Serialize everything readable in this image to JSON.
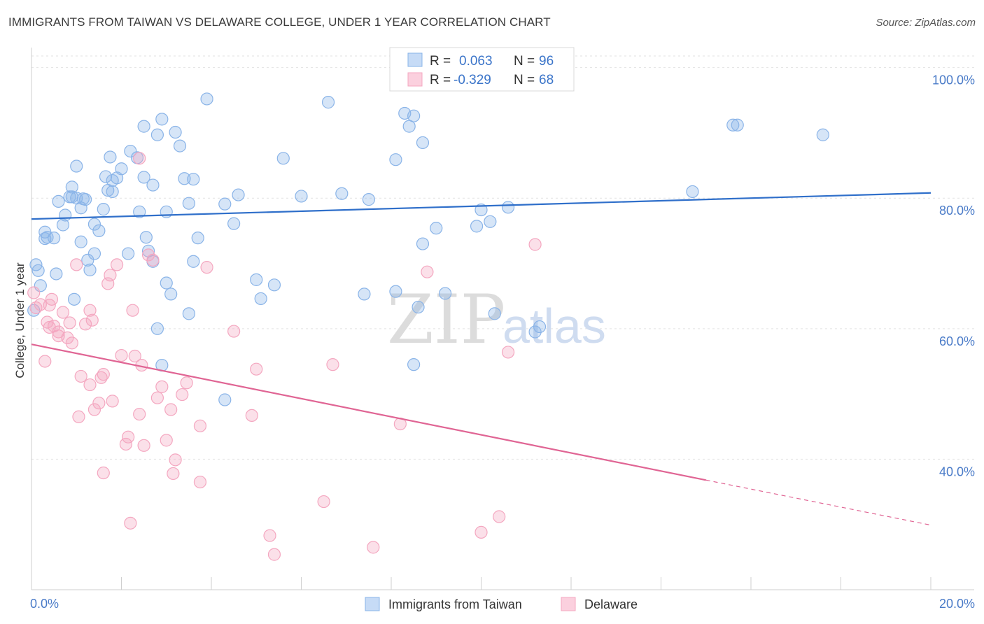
{
  "title": "IMMIGRANTS FROM TAIWAN VS DELAWARE COLLEGE, UNDER 1 YEAR CORRELATION CHART",
  "source": "Source: ZipAtlas.com",
  "watermark": {
    "zip": "ZIP",
    "atlas": "atlas"
  },
  "chart_data": {
    "type": "scatter",
    "ylabel": "College, Under 1 year",
    "xlim": [
      0,
      20
    ],
    "ylim": [
      20,
      102
    ],
    "x_ticks": [
      {
        "v": 0,
        "label": "0.0%"
      },
      {
        "v": 20,
        "label": "20.0%"
      }
    ],
    "y_ticks": [
      {
        "v": 40,
        "label": "40.0%"
      },
      {
        "v": 60,
        "label": "60.0%"
      },
      {
        "v": 80,
        "label": "80.0%"
      },
      {
        "v": 100,
        "label": "100.0%"
      }
    ],
    "legend": [
      {
        "r_label": "R =",
        "r_value": "0.063",
        "n_label": "N =",
        "n_value": "96"
      },
      {
        "r_label": "R =",
        "r_value": "-0.329",
        "n_label": "N =",
        "n_value": "68"
      }
    ],
    "series": [
      {
        "name": "Immigrants from Taiwan",
        "color": "#8ab4e8",
        "line_color": "#2f6fca",
        "trend": {
          "x": [
            0,
            20
          ],
          "y": [
            76.8,
            80.8
          ]
        },
        "points": [
          [
            0.1,
            69.8
          ],
          [
            0.15,
            68.9
          ],
          [
            0.2,
            66.6
          ],
          [
            0.05,
            62.8
          ],
          [
            0.3,
            74.8
          ],
          [
            0.35,
            74.0
          ],
          [
            0.3,
            73.8
          ],
          [
            0.5,
            73.9
          ],
          [
            0.7,
            75.9
          ],
          [
            0.75,
            77.4
          ],
          [
            0.6,
            79.5
          ],
          [
            0.85,
            80.2
          ],
          [
            0.9,
            81.7
          ],
          [
            1.0,
            80.0
          ],
          [
            1.1,
            78.5
          ],
          [
            1.2,
            79.8
          ],
          [
            1.0,
            84.9
          ],
          [
            1.1,
            73.3
          ],
          [
            1.4,
            71.5
          ],
          [
            1.5,
            75.0
          ],
          [
            1.4,
            76.0
          ],
          [
            1.6,
            78.3
          ],
          [
            1.7,
            81.2
          ],
          [
            1.8,
            81.0
          ],
          [
            1.9,
            83.1
          ],
          [
            2.0,
            84.5
          ],
          [
            1.75,
            86.3
          ],
          [
            1.8,
            82.7
          ],
          [
            1.65,
            83.3
          ],
          [
            2.2,
            87.2
          ],
          [
            2.35,
            86.2
          ],
          [
            2.4,
            77.9
          ],
          [
            2.5,
            83.2
          ],
          [
            2.7,
            82.0
          ],
          [
            2.5,
            91.0
          ],
          [
            2.8,
            89.7
          ],
          [
            2.9,
            92.1
          ],
          [
            3.2,
            90.1
          ],
          [
            3.3,
            88.0
          ],
          [
            3.4,
            83.0
          ],
          [
            3.5,
            79.2
          ],
          [
            3.6,
            82.9
          ],
          [
            3.0,
            77.9
          ],
          [
            2.55,
            74.0
          ],
          [
            2.6,
            71.9
          ],
          [
            2.7,
            70.3
          ],
          [
            3.0,
            67.0
          ],
          [
            3.1,
            65.3
          ],
          [
            3.5,
            62.3
          ],
          [
            3.6,
            70.3
          ],
          [
            3.7,
            73.9
          ],
          [
            3.9,
            95.2
          ],
          [
            4.6,
            80.5
          ],
          [
            4.3,
            79.1
          ],
          [
            4.5,
            76.1
          ],
          [
            5.0,
            67.5
          ],
          [
            5.1,
            64.6
          ],
          [
            5.4,
            66.7
          ],
          [
            5.6,
            86.1
          ],
          [
            6.0,
            80.3
          ],
          [
            6.6,
            94.7
          ],
          [
            6.9,
            80.7
          ],
          [
            7.5,
            79.8
          ],
          [
            7.4,
            65.3
          ],
          [
            8.1,
            85.9
          ],
          [
            8.1,
            65.7
          ],
          [
            8.3,
            93.0
          ],
          [
            8.5,
            92.6
          ],
          [
            8.7,
            88.5
          ],
          [
            8.4,
            91.0
          ],
          [
            8.7,
            73.0
          ],
          [
            8.6,
            63.3
          ],
          [
            8.5,
            54.5
          ],
          [
            9.0,
            75.4
          ],
          [
            9.2,
            65.4
          ],
          [
            9.9,
            75.7
          ],
          [
            10.0,
            78.2
          ],
          [
            10.2,
            76.4
          ],
          [
            10.6,
            78.6
          ],
          [
            10.3,
            62.3
          ],
          [
            11.2,
            59.5
          ],
          [
            11.3,
            60.3
          ],
          [
            14.7,
            81.0
          ],
          [
            15.6,
            91.2
          ],
          [
            15.7,
            91.2
          ],
          [
            17.6,
            89.7
          ],
          [
            4.3,
            49.1
          ],
          [
            2.9,
            54.4
          ],
          [
            2.8,
            60.0
          ],
          [
            1.15,
            79.9
          ],
          [
            0.9,
            80.2
          ],
          [
            1.25,
            70.5
          ],
          [
            1.3,
            69.0
          ],
          [
            0.55,
            68.4
          ],
          [
            0.95,
            64.5
          ],
          [
            2.15,
            71.5
          ]
        ]
      },
      {
        "name": "Delaware",
        "color": "#f4a7c0",
        "line_color": "#e06594",
        "trend": {
          "x": [
            0,
            15
          ],
          "y": [
            57.6,
            36.8
          ]
        },
        "trend_dashed": {
          "x": [
            15,
            20
          ],
          "y": [
            36.8,
            29.9
          ]
        },
        "points": [
          [
            0.05,
            65.5
          ],
          [
            0.1,
            63.2
          ],
          [
            0.3,
            55.0
          ],
          [
            0.4,
            60.2
          ],
          [
            0.5,
            60.4
          ],
          [
            0.45,
            64.5
          ],
          [
            0.6,
            58.9
          ],
          [
            0.7,
            62.5
          ],
          [
            0.8,
            58.6
          ],
          [
            0.9,
            57.8
          ],
          [
            0.85,
            60.9
          ],
          [
            1.1,
            52.7
          ],
          [
            1.05,
            46.5
          ],
          [
            1.3,
            51.4
          ],
          [
            1.3,
            62.8
          ],
          [
            1.2,
            60.7
          ],
          [
            1.4,
            47.6
          ],
          [
            1.5,
            48.6
          ],
          [
            1.55,
            52.5
          ],
          [
            1.6,
            53.0
          ],
          [
            1.7,
            66.9
          ],
          [
            1.75,
            68.2
          ],
          [
            1.8,
            48.9
          ],
          [
            1.9,
            69.8
          ],
          [
            2.0,
            55.9
          ],
          [
            2.1,
            42.3
          ],
          [
            2.15,
            43.4
          ],
          [
            2.25,
            62.8
          ],
          [
            2.3,
            55.8
          ],
          [
            2.4,
            46.9
          ],
          [
            2.45,
            54.4
          ],
          [
            2.5,
            42.1
          ],
          [
            2.6,
            71.3
          ],
          [
            2.7,
            70.5
          ],
          [
            2.8,
            49.4
          ],
          [
            2.9,
            51.1
          ],
          [
            3.0,
            42.9
          ],
          [
            3.1,
            47.6
          ],
          [
            3.15,
            37.8
          ],
          [
            3.2,
            39.9
          ],
          [
            3.35,
            49.9
          ],
          [
            3.45,
            51.7
          ],
          [
            3.75,
            45.1
          ],
          [
            3.75,
            36.5
          ],
          [
            3.9,
            69.4
          ],
          [
            4.5,
            59.6
          ],
          [
            4.9,
            46.7
          ],
          [
            5.0,
            53.8
          ],
          [
            5.3,
            28.3
          ],
          [
            5.4,
            25.4
          ],
          [
            6.5,
            33.5
          ],
          [
            6.7,
            54.5
          ],
          [
            7.6,
            26.5
          ],
          [
            8.2,
            45.4
          ],
          [
            8.8,
            68.7
          ],
          [
            10.0,
            28.8
          ],
          [
            10.4,
            31.2
          ],
          [
            10.6,
            56.4
          ],
          [
            11.2,
            72.9
          ],
          [
            2.4,
            86.1
          ],
          [
            1.6,
            37.9
          ],
          [
            2.2,
            30.2
          ],
          [
            1.0,
            69.8
          ],
          [
            0.4,
            63.6
          ],
          [
            0.2,
            63.7
          ],
          [
            0.6,
            59.5
          ],
          [
            1.35,
            61.3
          ],
          [
            0.35,
            61.0
          ]
        ]
      }
    ]
  }
}
